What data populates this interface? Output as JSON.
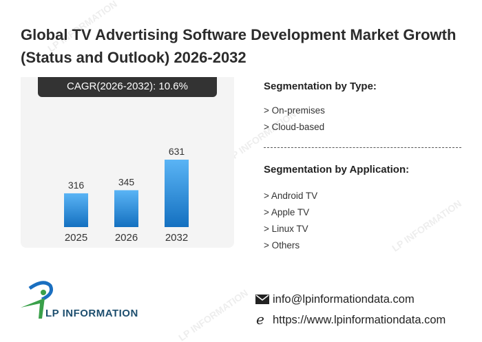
{
  "title": "Global TV Advertising Software Development Market Growth (Status and Outlook) 2026-2032",
  "cagr_label": "CAGR(2026-2032):  10.6%",
  "chart_data": {
    "type": "bar",
    "categories": [
      "2025",
      "2026",
      "2032"
    ],
    "values": [
      316,
      345,
      631
    ],
    "title": "",
    "xlabel": "",
    "ylabel": "",
    "ylim": [
      0,
      700
    ],
    "grid": false,
    "bar_color_top": "#5ab4f5",
    "bar_color_bottom": "#1470c0"
  },
  "segmentation": {
    "type_heading": "Segmentation by Type:",
    "types": [
      "> On-premises",
      "> Cloud-based"
    ],
    "application_heading": "Segmentation by Application:",
    "applications": [
      "> Android TV",
      "> Apple TV",
      "> Linux TV",
      "> Others"
    ]
  },
  "contact": {
    "email": "info@lpinformationdata.com",
    "website": "https://www.lpinformationdata.com"
  },
  "logo": {
    "text": "LP INFORMATION"
  },
  "watermark": "LP INFORMATION"
}
